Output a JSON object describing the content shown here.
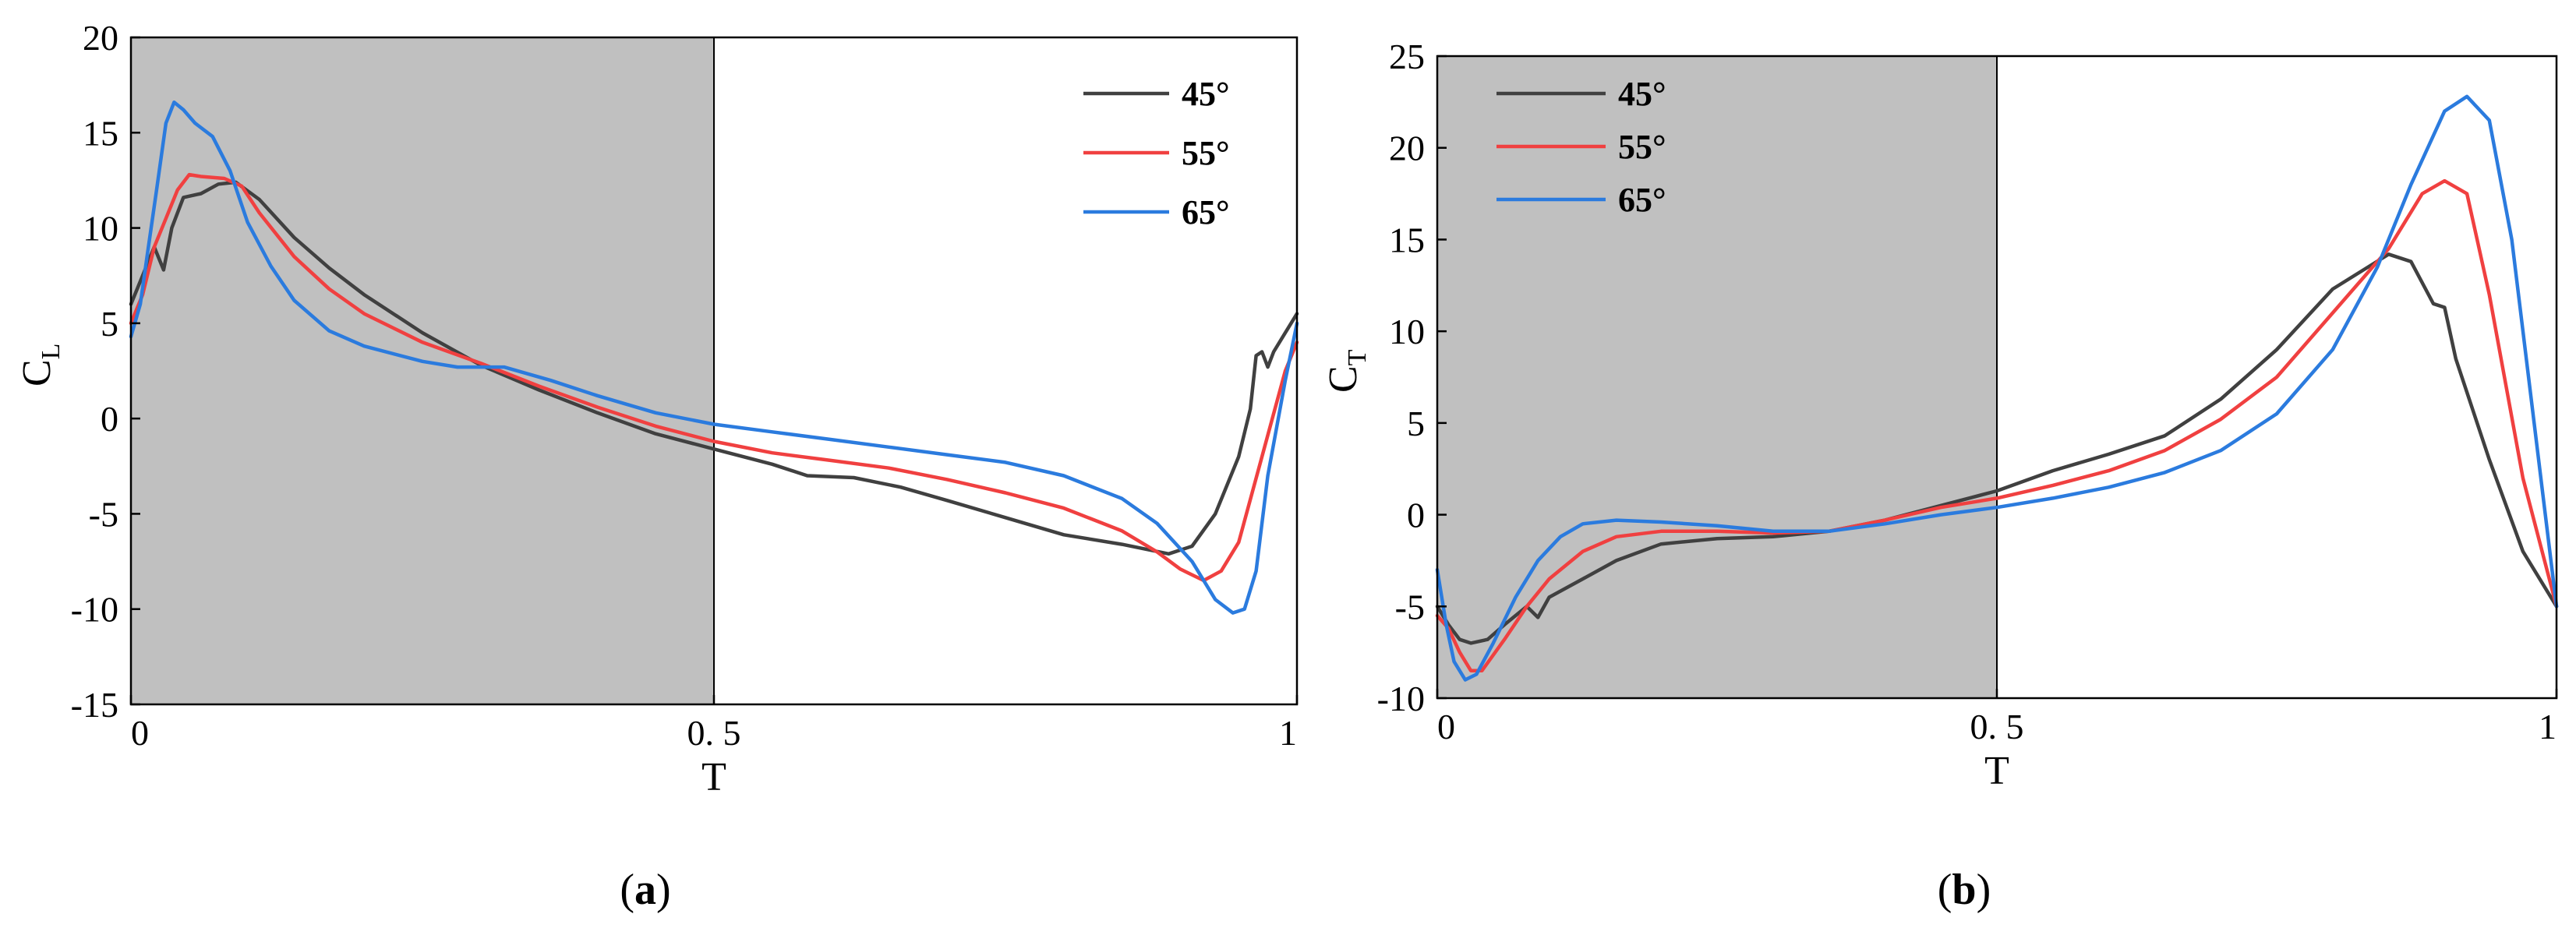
{
  "chart_data": [
    {
      "type": "line",
      "panel_label": "a",
      "xlabel": "T",
      "ylabel": "C",
      "ylabel_sub": "L",
      "xlim": [
        0,
        1
      ],
      "ylim": [
        -15,
        20
      ],
      "xticks": [
        0,
        0.5,
        1
      ],
      "xtick_labels": [
        "0",
        "0. 5",
        "1"
      ],
      "yticks": [
        -15,
        -10,
        -5,
        0,
        5,
        10,
        15,
        20
      ],
      "ytick_labels": [
        "-15",
        "-10",
        "-5",
        "0",
        "5",
        "10",
        "15",
        "20"
      ],
      "grid": false,
      "shaded_region": {
        "x": [
          0,
          0.5
        ],
        "color": "#c0c0c0"
      },
      "legend": {
        "placement": "top-right"
      },
      "series": [
        {
          "name": "45°",
          "color": "#404040",
          "points": [
            [
              0,
              6
            ],
            [
              0.01,
              7.5
            ],
            [
              0.02,
              9
            ],
            [
              0.028,
              7.8
            ],
            [
              0.035,
              10
            ],
            [
              0.045,
              11.6
            ],
            [
              0.06,
              11.8
            ],
            [
              0.075,
              12.3
            ],
            [
              0.09,
              12.4
            ],
            [
              0.11,
              11.5
            ],
            [
              0.14,
              9.5
            ],
            [
              0.17,
              7.9
            ],
            [
              0.2,
              6.5
            ],
            [
              0.25,
              4.5
            ],
            [
              0.3,
              2.8
            ],
            [
              0.35,
              1.5
            ],
            [
              0.4,
              0.3
            ],
            [
              0.45,
              -0.8
            ],
            [
              0.5,
              -1.6
            ],
            [
              0.55,
              -2.4
            ],
            [
              0.58,
              -3
            ],
            [
              0.62,
              -3.1
            ],
            [
              0.66,
              -3.6
            ],
            [
              0.7,
              -4.3
            ],
            [
              0.75,
              -5.2
            ],
            [
              0.8,
              -6.1
            ],
            [
              0.85,
              -6.6
            ],
            [
              0.89,
              -7.1
            ],
            [
              0.91,
              -6.7
            ],
            [
              0.93,
              -5
            ],
            [
              0.95,
              -2
            ],
            [
              0.96,
              0.5
            ],
            [
              0.965,
              3.3
            ],
            [
              0.97,
              3.5
            ],
            [
              0.975,
              2.7
            ],
            [
              0.98,
              3.5
            ],
            [
              0.99,
              4.5
            ],
            [
              1,
              5.5
            ]
          ]
        },
        {
          "name": "55°",
          "color": "#f04040",
          "points": [
            [
              0,
              5
            ],
            [
              0.01,
              6.5
            ],
            [
              0.02,
              9
            ],
            [
              0.03,
              10.5
            ],
            [
              0.04,
              12
            ],
            [
              0.05,
              12.8
            ],
            [
              0.06,
              12.7
            ],
            [
              0.08,
              12.6
            ],
            [
              0.095,
              12.2
            ],
            [
              0.11,
              10.8
            ],
            [
              0.14,
              8.5
            ],
            [
              0.17,
              6.8
            ],
            [
              0.2,
              5.5
            ],
            [
              0.25,
              4
            ],
            [
              0.3,
              2.9
            ],
            [
              0.35,
              1.7
            ],
            [
              0.4,
              0.6
            ],
            [
              0.45,
              -0.4
            ],
            [
              0.5,
              -1.2
            ],
            [
              0.55,
              -1.8
            ],
            [
              0.6,
              -2.2
            ],
            [
              0.65,
              -2.6
            ],
            [
              0.7,
              -3.2
            ],
            [
              0.75,
              -3.9
            ],
            [
              0.8,
              -4.7
            ],
            [
              0.85,
              -5.9
            ],
            [
              0.88,
              -7
            ],
            [
              0.9,
              -7.9
            ],
            [
              0.92,
              -8.5
            ],
            [
              0.935,
              -8
            ],
            [
              0.95,
              -6.5
            ],
            [
              0.97,
              -2
            ],
            [
              0.99,
              2.5
            ],
            [
              1,
              4
            ]
          ]
        },
        {
          "name": "65°",
          "color": "#2b7bde",
          "points": [
            [
              0,
              4.3
            ],
            [
              0.008,
              6
            ],
            [
              0.015,
              9
            ],
            [
              0.022,
              12
            ],
            [
              0.03,
              15.5
            ],
            [
              0.037,
              16.6
            ],
            [
              0.045,
              16.2
            ],
            [
              0.055,
              15.5
            ],
            [
              0.07,
              14.8
            ],
            [
              0.085,
              13
            ],
            [
              0.1,
              10.3
            ],
            [
              0.12,
              8
            ],
            [
              0.14,
              6.2
            ],
            [
              0.17,
              4.6
            ],
            [
              0.2,
              3.8
            ],
            [
              0.25,
              3
            ],
            [
              0.28,
              2.7
            ],
            [
              0.32,
              2.7
            ],
            [
              0.36,
              2
            ],
            [
              0.4,
              1.2
            ],
            [
              0.45,
              0.3
            ],
            [
              0.5,
              -0.3
            ],
            [
              0.55,
              -0.7
            ],
            [
              0.6,
              -1.1
            ],
            [
              0.65,
              -1.5
            ],
            [
              0.7,
              -1.9
            ],
            [
              0.75,
              -2.3
            ],
            [
              0.8,
              -3
            ],
            [
              0.85,
              -4.2
            ],
            [
              0.88,
              -5.5
            ],
            [
              0.91,
              -7.5
            ],
            [
              0.93,
              -9.5
            ],
            [
              0.945,
              -10.2
            ],
            [
              0.955,
              -10
            ],
            [
              0.965,
              -8
            ],
            [
              0.975,
              -3
            ],
            [
              0.99,
              2
            ],
            [
              1,
              5
            ]
          ]
        }
      ]
    },
    {
      "type": "line",
      "panel_label": "b",
      "xlabel": "T",
      "ylabel": "C",
      "ylabel_sub": "T",
      "xlim": [
        0,
        1
      ],
      "ylim": [
        -10,
        25
      ],
      "xticks": [
        0,
        0.5,
        1
      ],
      "xtick_labels": [
        "0",
        "0. 5",
        "1"
      ],
      "yticks": [
        -10,
        -5,
        0,
        5,
        10,
        15,
        20,
        25
      ],
      "ytick_labels": [
        "-10",
        "-5",
        "0",
        "5",
        "10",
        "15",
        "20",
        "25"
      ],
      "grid": false,
      "shaded_region": {
        "x": [
          0,
          0.5
        ],
        "color": "#c0c0c0"
      },
      "legend": {
        "placement": "top-left"
      },
      "series": [
        {
          "name": "45°",
          "color": "#404040",
          "points": [
            [
              0,
              -5
            ],
            [
              0.01,
              -6
            ],
            [
              0.02,
              -6.8
            ],
            [
              0.03,
              -7
            ],
            [
              0.045,
              -6.8
            ],
            [
              0.06,
              -6
            ],
            [
              0.08,
              -5
            ],
            [
              0.09,
              -5.6
            ],
            [
              0.1,
              -4.5
            ],
            [
              0.13,
              -3.5
            ],
            [
              0.16,
              -2.5
            ],
            [
              0.2,
              -1.6
            ],
            [
              0.25,
              -1.3
            ],
            [
              0.3,
              -1.2
            ],
            [
              0.35,
              -0.9
            ],
            [
              0.4,
              -0.3
            ],
            [
              0.45,
              0.5
            ],
            [
              0.5,
              1.3
            ],
            [
              0.55,
              2.4
            ],
            [
              0.6,
              3.3
            ],
            [
              0.65,
              4.3
            ],
            [
              0.7,
              6.3
            ],
            [
              0.75,
              9
            ],
            [
              0.8,
              12.3
            ],
            [
              0.85,
              14.2
            ],
            [
              0.87,
              13.8
            ],
            [
              0.89,
              11.5
            ],
            [
              0.9,
              11.3
            ],
            [
              0.91,
              8.5
            ],
            [
              0.94,
              3
            ],
            [
              0.97,
              -2
            ],
            [
              1,
              -5
            ]
          ]
        },
        {
          "name": "55°",
          "color": "#f04040",
          "points": [
            [
              0,
              -5.5
            ],
            [
              0.01,
              -6.2
            ],
            [
              0.02,
              -7.5
            ],
            [
              0.03,
              -8.5
            ],
            [
              0.04,
              -8.5
            ],
            [
              0.06,
              -6.8
            ],
            [
              0.08,
              -5
            ],
            [
              0.1,
              -3.5
            ],
            [
              0.13,
              -2
            ],
            [
              0.16,
              -1.2
            ],
            [
              0.2,
              -0.9
            ],
            [
              0.25,
              -0.9
            ],
            [
              0.3,
              -1
            ],
            [
              0.35,
              -0.9
            ],
            [
              0.4,
              -0.3
            ],
            [
              0.45,
              0.4
            ],
            [
              0.5,
              0.9
            ],
            [
              0.55,
              1.6
            ],
            [
              0.6,
              2.4
            ],
            [
              0.65,
              3.5
            ],
            [
              0.7,
              5.2
            ],
            [
              0.75,
              7.5
            ],
            [
              0.8,
              11
            ],
            [
              0.85,
              14.5
            ],
            [
              0.88,
              17.5
            ],
            [
              0.9,
              18.2
            ],
            [
              0.92,
              17.5
            ],
            [
              0.94,
              12
            ],
            [
              0.97,
              2
            ],
            [
              1,
              -5
            ]
          ]
        },
        {
          "name": "65°",
          "color": "#2b7bde",
          "points": [
            [
              0,
              -3
            ],
            [
              0.008,
              -6
            ],
            [
              0.015,
              -8
            ],
            [
              0.025,
              -9
            ],
            [
              0.035,
              -8.7
            ],
            [
              0.05,
              -7
            ],
            [
              0.07,
              -4.5
            ],
            [
              0.09,
              -2.5
            ],
            [
              0.11,
              -1.2
            ],
            [
              0.13,
              -0.5
            ],
            [
              0.16,
              -0.3
            ],
            [
              0.2,
              -0.4
            ],
            [
              0.25,
              -0.6
            ],
            [
              0.3,
              -0.9
            ],
            [
              0.35,
              -0.9
            ],
            [
              0.4,
              -0.5
            ],
            [
              0.45,
              0
            ],
            [
              0.5,
              0.4
            ],
            [
              0.55,
              0.9
            ],
            [
              0.6,
              1.5
            ],
            [
              0.65,
              2.3
            ],
            [
              0.7,
              3.5
            ],
            [
              0.75,
              5.5
            ],
            [
              0.8,
              9
            ],
            [
              0.84,
              13.5
            ],
            [
              0.87,
              18
            ],
            [
              0.9,
              22
            ],
            [
              0.92,
              22.8
            ],
            [
              0.94,
              21.5
            ],
            [
              0.96,
              15
            ],
            [
              0.98,
              5
            ],
            [
              1,
              -5
            ]
          ]
        }
      ]
    }
  ]
}
